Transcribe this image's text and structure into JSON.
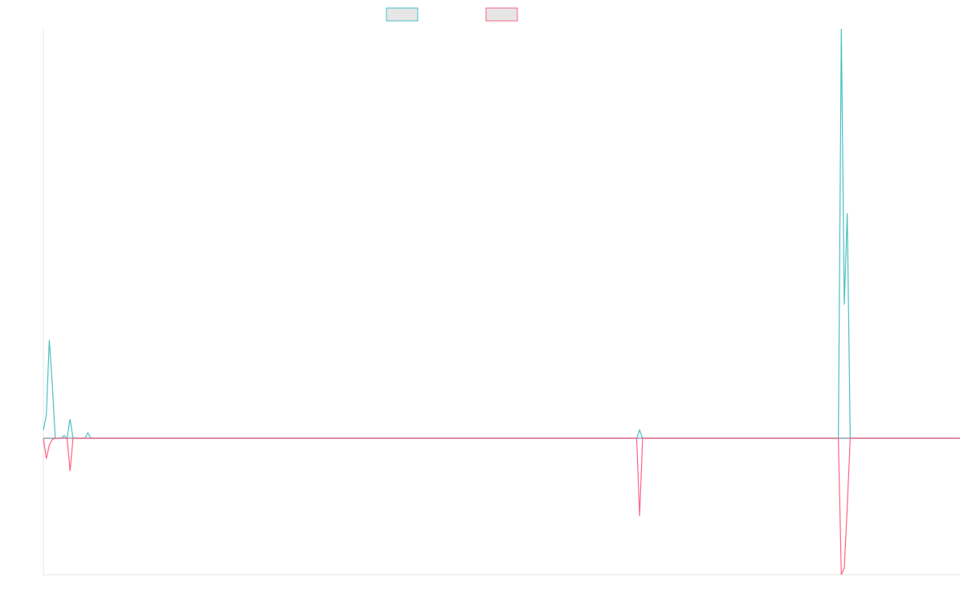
{
  "chart_data": {
    "type": "line",
    "title": "",
    "xlabel": "",
    "ylabel": "",
    "grid": false,
    "legend": "top-center",
    "ylim": [
      -1,
      3
    ],
    "series": [
      {
        "name": "",
        "color": "#4bc0c0",
        "points": [
          [
            0,
            0.06
          ],
          [
            1,
            0.17
          ],
          [
            2,
            0.72
          ],
          [
            3,
            0.4
          ],
          [
            4,
            0.0
          ],
          [
            5,
            0.0
          ],
          [
            6,
            0.0
          ],
          [
            7,
            0.02
          ],
          [
            8,
            0.0
          ],
          [
            9,
            0.14
          ],
          [
            10,
            0.0
          ],
          [
            11,
            0.0
          ],
          [
            14,
            0.0
          ],
          [
            15,
            0.04
          ],
          [
            16,
            0.0
          ],
          [
            200,
            0.0
          ],
          [
            201,
            0.06
          ],
          [
            202,
            0.0
          ],
          [
            268,
            0.0
          ],
          [
            269,
            3.0
          ],
          [
            270,
            0.98
          ],
          [
            271,
            1.65
          ],
          [
            272,
            0.0
          ],
          [
            309,
            0.0
          ]
        ]
      },
      {
        "name": "",
        "color": "#ff6384",
        "points": [
          [
            0,
            0.0
          ],
          [
            1,
            -0.15
          ],
          [
            2,
            -0.05
          ],
          [
            3,
            -0.01
          ],
          [
            4,
            0.0
          ],
          [
            8,
            0.0
          ],
          [
            9,
            -0.24
          ],
          [
            10,
            0.0
          ],
          [
            11,
            0.0
          ],
          [
            200,
            0.0
          ],
          [
            201,
            -0.57
          ],
          [
            202,
            0.0
          ],
          [
            268,
            0.0
          ],
          [
            269,
            -1.0
          ],
          [
            270,
            -0.95
          ],
          [
            271,
            -0.5
          ],
          [
            272,
            0.0
          ],
          [
            309,
            0.0
          ]
        ]
      }
    ],
    "baseline_color": "#8aa3b8"
  }
}
